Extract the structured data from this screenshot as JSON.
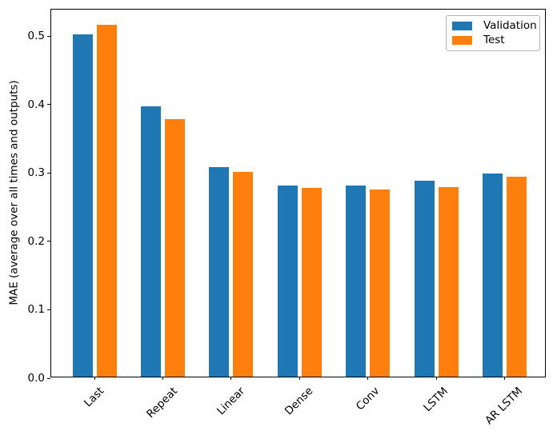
{
  "chart_data": {
    "type": "bar",
    "title": "",
    "xlabel": "",
    "ylabel": "MAE (average over all times and outputs)",
    "categories": [
      "Last",
      "Repeat",
      "Linear",
      "Dense",
      "Conv",
      "LSTM",
      "AR LSTM"
    ],
    "series": [
      {
        "name": "Validation",
        "color": "#1f77b4",
        "values": [
          0.501,
          0.395,
          0.306,
          0.28,
          0.28,
          0.286,
          0.297
        ]
      },
      {
        "name": "Test",
        "color": "#ff7f0e",
        "values": [
          0.515,
          0.377,
          0.299,
          0.276,
          0.274,
          0.277,
          0.292
        ]
      }
    ],
    "ylim": [
      0,
      0.539
    ],
    "yticks": [
      0.0,
      0.1,
      0.2,
      0.3,
      0.4,
      0.5
    ],
    "ytick_labels": [
      "0.0",
      "0.1",
      "0.2",
      "0.3",
      "0.4",
      "0.5"
    ],
    "x_tick_rotation": 45,
    "grid": false,
    "legend_position": "upper right",
    "axis_color": "#000000",
    "background_color": "#ffffff"
  }
}
